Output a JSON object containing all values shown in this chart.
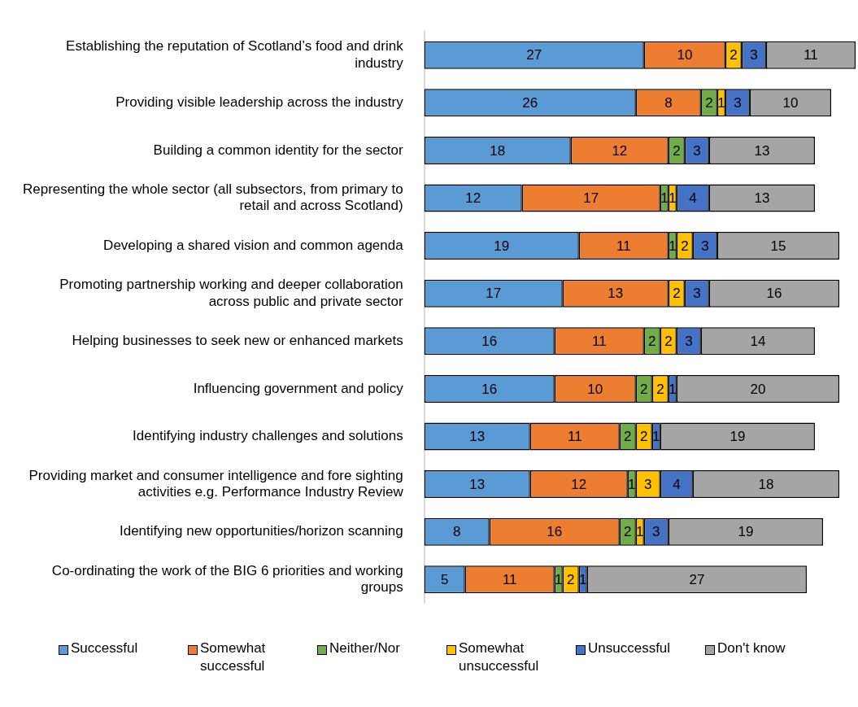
{
  "chart_data": {
    "type": "bar",
    "orientation": "horizontal",
    "stacked": true,
    "legend": "bottom",
    "data_labels": true,
    "xlim": [
      0,
      53
    ],
    "categories": [
      "Establishing the reputation of Scotland’s food and drink industry",
      "Providing visible leadership across the industry",
      "Building a common identity for the sector",
      "Representing the whole sector (all subsectors, from primary to retail and across Scotland)",
      "Developing a shared vision and common agenda",
      "Promoting partnership working and deeper collaboration across public and private sector",
      "Helping businesses to seek new or enhanced markets",
      "Influencing government and policy",
      "Identifying industry challenges and solutions",
      "Providing market and consumer intelligence and fore sighting activities e.g. Performance Industry Review",
      "Identifying new opportunities/horizon scanning",
      "Co-ordinating the work of the BIG 6 priorities and working groups"
    ],
    "series": [
      {
        "name": "Successful",
        "color": "#5b9bd5",
        "values": [
          27,
          26,
          18,
          12,
          19,
          17,
          16,
          16,
          13,
          13,
          8,
          5
        ]
      },
      {
        "name": "Somewhat successful",
        "color": "#ed7d31",
        "values": [
          10,
          8,
          12,
          17,
          11,
          13,
          11,
          10,
          11,
          12,
          16,
          11
        ]
      },
      {
        "name": "Neither/Nor",
        "color": "#70ad47",
        "values": [
          null,
          2,
          2,
          1,
          1,
          null,
          2,
          2,
          2,
          1,
          2,
          1
        ]
      },
      {
        "name": "Somewhat unsuccessful",
        "color": "#ffc000",
        "values": [
          2,
          1,
          null,
          1,
          2,
          2,
          2,
          2,
          2,
          3,
          1,
          2
        ]
      },
      {
        "name": "Unsuccessful",
        "color": "#4472c4",
        "values": [
          3,
          3,
          3,
          4,
          3,
          3,
          3,
          1,
          1,
          4,
          3,
          1
        ]
      },
      {
        "name": "Don't know",
        "color": "#a5a5a5",
        "values": [
          11,
          10,
          13,
          13,
          15,
          16,
          14,
          20,
          19,
          18,
          19,
          27
        ]
      }
    ]
  }
}
